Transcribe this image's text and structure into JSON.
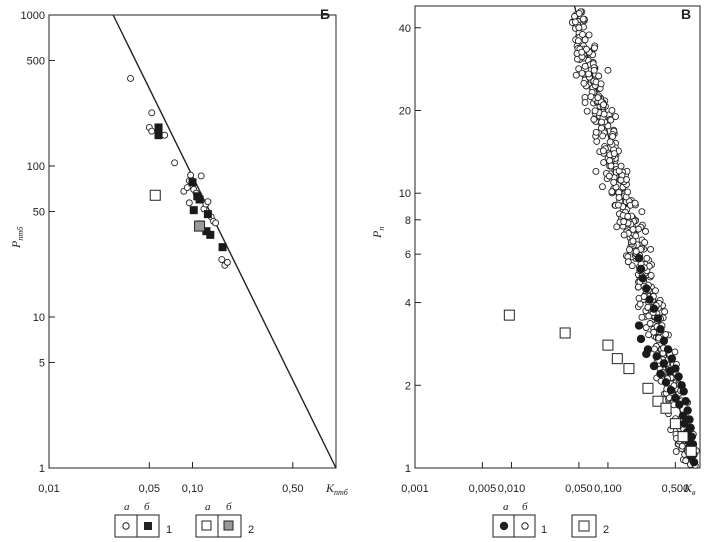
{
  "chart_data": [
    {
      "panel": "Б",
      "type": "scatter",
      "scale": {
        "x": "log",
        "y": "log"
      },
      "xlim": [
        0.01,
        1.0
      ],
      "ylim": [
        1,
        1000
      ],
      "xticks": [
        0.01,
        0.05,
        0.1,
        0.5
      ],
      "xtick_labels": [
        "0,01",
        "0,05",
        "0,10",
        "0,50"
      ],
      "yticks": [
        1,
        5,
        10,
        50,
        100,
        500,
        1000
      ],
      "ytick_labels": [
        "1",
        "5",
        "10",
        "50",
        "100",
        "500",
        "1000"
      ],
      "xlabel": {
        "main": "K",
        "sub": "птб"
      },
      "ylabel": {
        "main": "P",
        "sub": "птб"
      },
      "fit_line": [
        [
          0.028,
          1000
        ],
        [
          1.0,
          1
        ]
      ],
      "series": [
        {
          "style": "open-circle",
          "points": [
            [
              0.037,
              380
            ],
            [
              0.052,
              225
            ],
            [
              0.05,
              180
            ],
            [
              0.052,
              170
            ],
            [
              0.064,
              160
            ],
            [
              0.075,
              105
            ],
            [
              0.087,
              68
            ],
            [
              0.092,
              72
            ],
            [
              0.095,
              80
            ],
            [
              0.097,
              87
            ],
            [
              0.102,
              70
            ],
            [
              0.106,
              66
            ],
            [
              0.112,
              62
            ],
            [
              0.115,
              86
            ],
            [
              0.12,
              52
            ],
            [
              0.124,
              56
            ],
            [
              0.128,
              58
            ],
            [
              0.095,
              57
            ],
            [
              0.135,
              46
            ],
            [
              0.14,
              43
            ],
            [
              0.145,
              42
            ],
            [
              0.16,
              24
            ],
            [
              0.168,
              22
            ],
            [
              0.175,
              23
            ]
          ]
        },
        {
          "style": "filled-square",
          "points": [
            [
              0.058,
              180
            ],
            [
              0.058,
              160
            ],
            [
              0.1,
              78
            ],
            [
              0.108,
              63
            ],
            [
              0.112,
              60
            ],
            [
              0.128,
              48
            ],
            [
              0.102,
              51
            ],
            [
              0.113,
              41
            ],
            [
              0.125,
              37
            ],
            [
              0.133,
              35
            ],
            [
              0.162,
              29
            ]
          ]
        },
        {
          "style": "open-square",
          "points": [
            [
              0.055,
              64
            ]
          ]
        },
        {
          "style": "grey-square",
          "points": [
            [
              0.112,
              40
            ]
          ]
        }
      ]
    },
    {
      "panel": "В",
      "type": "scatter",
      "scale": {
        "x": "log",
        "y": "log"
      },
      "xlim": [
        0.001,
        0.9
      ],
      "ylim": [
        1,
        48
      ],
      "xticks": [
        0.001,
        0.005,
        0.01,
        0.05,
        0.1,
        0.5
      ],
      "xtick_labels": [
        "0,001",
        "0,005",
        "0,010",
        "0,050",
        "0,100",
        "0,500"
      ],
      "yticks": [
        1,
        2,
        4,
        6,
        8,
        10,
        20,
        40
      ],
      "ytick_labels": [
        "1",
        "2",
        "4",
        "6",
        "8",
        "10",
        "20",
        "40"
      ],
      "xlabel": {
        "main": "K",
        "sub": "в"
      },
      "ylabel": {
        "main": "P",
        "sub": "п"
      },
      "fit_line": [
        [
          0.045,
          48
        ],
        [
          0.8,
          1
        ]
      ],
      "open_circle_cloud": {
        "count": 540,
        "x_range": [
          0.048,
          0.8
        ],
        "spread": 0.22
      },
      "series": [
        {
          "style": "open-circle",
          "points": [
            [
              0.045,
              44
            ],
            [
              0.046,
              42
            ],
            [
              0.05,
              40
            ],
            [
              0.072,
              28
            ],
            [
              0.085,
              25
            ],
            [
              0.1,
              28
            ],
            [
              0.11,
              20
            ],
            [
              0.12,
              19
            ],
            [
              0.09,
              21
            ],
            [
              0.075,
              12
            ]
          ]
        },
        {
          "style": "filled-circle",
          "points": [
            [
              0.21,
              5.8
            ],
            [
              0.22,
              5.3
            ],
            [
              0.23,
              4.9
            ],
            [
              0.25,
              4.5
            ],
            [
              0.27,
              4.1
            ],
            [
              0.3,
              3.8
            ],
            [
              0.21,
              3.3
            ],
            [
              0.33,
              3.5
            ],
            [
              0.35,
              3.2
            ],
            [
              0.38,
              2.9
            ],
            [
              0.22,
              2.95
            ],
            [
              0.25,
              2.6
            ],
            [
              0.42,
              2.7
            ],
            [
              0.46,
              2.5
            ],
            [
              0.3,
              2.35
            ],
            [
              0.5,
              2.3
            ],
            [
              0.35,
              2.2
            ],
            [
              0.54,
              2.15
            ],
            [
              0.4,
              2.05
            ],
            [
              0.58,
              2.0
            ],
            [
              0.45,
              1.92
            ],
            [
              0.61,
              1.9
            ],
            [
              0.5,
              1.8
            ],
            [
              0.64,
              1.75
            ],
            [
              0.55,
              1.7
            ],
            [
              0.67,
              1.62
            ],
            [
              0.6,
              1.55
            ],
            [
              0.7,
              1.5
            ],
            [
              0.62,
              1.45
            ],
            [
              0.72,
              1.4
            ],
            [
              0.66,
              1.35
            ],
            [
              0.74,
              1.3
            ],
            [
              0.69,
              1.25
            ],
            [
              0.76,
              1.22
            ],
            [
              0.71,
              1.18
            ],
            [
              0.77,
              1.12
            ],
            [
              0.73,
              1.1
            ],
            [
              0.78,
              1.05
            ],
            [
              0.26,
              2.7
            ],
            [
              0.32,
              2.55
            ],
            [
              0.38,
              2.4
            ],
            [
              0.44,
              2.25
            ]
          ]
        },
        {
          "style": "open-square",
          "points": [
            [
              0.0095,
              3.6
            ],
            [
              0.036,
              3.1
            ],
            [
              0.1,
              2.8
            ],
            [
              0.125,
              2.5
            ],
            [
              0.165,
              2.3
            ],
            [
              0.26,
              1.95
            ],
            [
              0.33,
              1.75
            ],
            [
              0.4,
              1.65
            ],
            [
              0.5,
              1.45
            ],
            [
              0.6,
              1.3
            ],
            [
              0.73,
              1.15
            ]
          ]
        }
      ]
    }
  ],
  "legend_b": {
    "col_a": "а",
    "col_b": "б",
    "num1": "1",
    "col_a2": "а",
    "col_b2": "б",
    "num2": "2"
  },
  "legend_v": {
    "col_a": "а",
    "col_b": "б",
    "num1": "1",
    "num2": "2"
  }
}
